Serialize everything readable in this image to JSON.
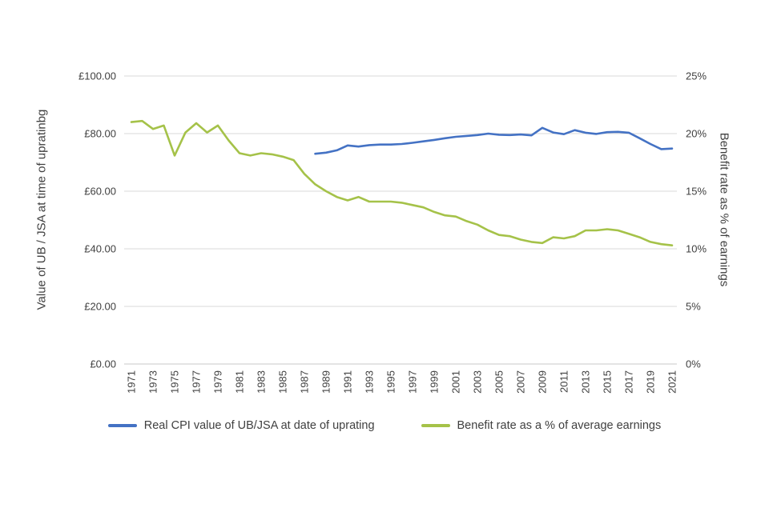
{
  "chart_data": {
    "type": "line",
    "x": [
      1971,
      1972,
      1973,
      1974,
      1975,
      1976,
      1977,
      1978,
      1979,
      1980,
      1981,
      1982,
      1983,
      1984,
      1985,
      1986,
      1987,
      1988,
      1989,
      1990,
      1991,
      1992,
      1993,
      1994,
      1995,
      1996,
      1997,
      1998,
      1999,
      2000,
      2001,
      2002,
      2003,
      2004,
      2005,
      2006,
      2007,
      2008,
      2009,
      2010,
      2011,
      2012,
      2013,
      2014,
      2015,
      2016,
      2017,
      2018,
      2019,
      2020,
      2021
    ],
    "x_tick_labels": [
      "1971",
      "1973",
      "1975",
      "1977",
      "1979",
      "1981",
      "1983",
      "1985",
      "1987",
      "1989",
      "1991",
      "1993",
      "1995",
      "1997",
      "1999",
      "2001",
      "2003",
      "2005",
      "2007",
      "2009",
      "2011",
      "2013",
      "2015",
      "2017",
      "2019",
      "2021"
    ],
    "series": [
      {
        "name": "Real CPI value of UB/JSA at date of uprating",
        "color": "#4472C4",
        "axis": "left",
        "unit": "£",
        "values": [
          null,
          null,
          null,
          null,
          null,
          null,
          null,
          null,
          null,
          null,
          null,
          null,
          null,
          null,
          null,
          null,
          null,
          73.0,
          73.4,
          74.2,
          75.9,
          75.5,
          76.0,
          76.2,
          76.2,
          76.4,
          76.8,
          77.3,
          77.8,
          78.4,
          78.9,
          79.2,
          79.5,
          80.0,
          79.6,
          79.5,
          79.7,
          79.4,
          82.0,
          80.4,
          79.8,
          81.2,
          80.3,
          79.9,
          80.5,
          80.6,
          80.3,
          78.4,
          76.4,
          74.6,
          74.8
        ]
      },
      {
        "name": "Benefit rate as a % of average earnings",
        "color": "#A5C249",
        "axis": "right",
        "unit": "%",
        "values": [
          21.0,
          21.1,
          20.4,
          20.7,
          18.1,
          20.1,
          20.9,
          20.1,
          20.7,
          19.4,
          18.3,
          18.1,
          18.3,
          18.2,
          18.0,
          17.7,
          16.5,
          15.6,
          15.0,
          14.5,
          14.2,
          14.5,
          14.1,
          14.1,
          14.1,
          14.0,
          13.8,
          13.6,
          13.2,
          12.9,
          12.8,
          12.4,
          12.1,
          11.6,
          11.2,
          11.1,
          10.8,
          10.6,
          10.5,
          11.0,
          10.9,
          11.1,
          11.6,
          11.6,
          11.7,
          11.6,
          11.3,
          11.0,
          10.6,
          10.4,
          10.3
        ]
      }
    ],
    "left_axis": {
      "label": "Value of UB / JSA at time of upratinbg",
      "min": 0,
      "max": 100,
      "tick_values": [
        0,
        20,
        40,
        60,
        80,
        100
      ],
      "tick_labels": [
        "£0.00",
        "£20.00",
        "£40.00",
        "£60.00",
        "£80.00",
        "£100.00"
      ]
    },
    "right_axis": {
      "label": "Benefit rate as % of earnings",
      "min": 0,
      "max": 25,
      "tick_values": [
        0,
        5,
        10,
        15,
        20,
        25
      ],
      "tick_labels": [
        "0%",
        "5%",
        "10%",
        "15%",
        "20%",
        "25%"
      ]
    },
    "grid": true,
    "legend_position": "bottom"
  }
}
